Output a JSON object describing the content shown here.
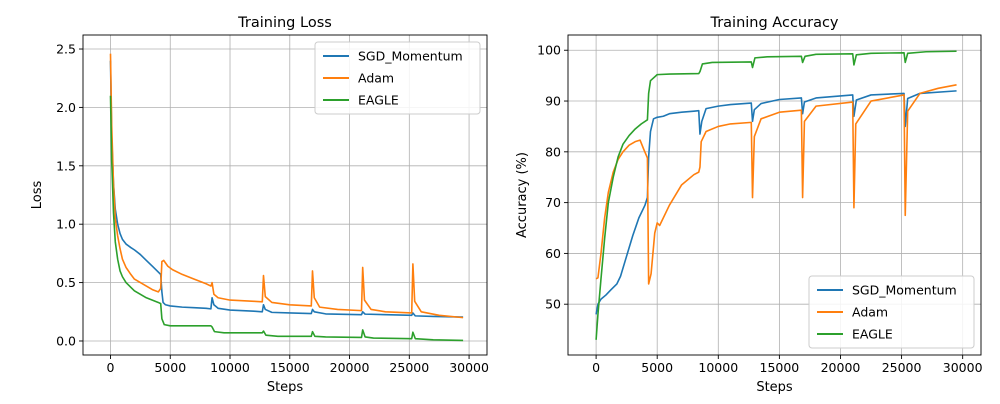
{
  "chart_data": [
    {
      "type": "line",
      "title": "Training Loss",
      "xlabel": "Steps",
      "ylabel": "Loss",
      "xlim": [
        -2300,
        31500
      ],
      "ylim": [
        -0.12,
        2.62
      ],
      "xticks": [
        0,
        5000,
        10000,
        15000,
        20000,
        25000,
        30000
      ],
      "yticks": [
        0.0,
        0.5,
        1.0,
        1.5,
        2.0,
        2.5
      ],
      "ytick_labels": [
        "0.0",
        "0.5",
        "1.0",
        "1.5",
        "2.0",
        "2.5"
      ],
      "grid": true,
      "legend_position": "top-right",
      "series": [
        {
          "name": "SGD_Momentum",
          "color": "#1f77b4",
          "points": [
            [
              0,
              2.4
            ],
            [
              100,
              1.75
            ],
            [
              250,
              1.35
            ],
            [
              400,
              1.13
            ],
            [
              600,
              1.0
            ],
            [
              800,
              0.92
            ],
            [
              1000,
              0.87
            ],
            [
              1300,
              0.83
            ],
            [
              1700,
              0.8
            ],
            [
              2000,
              0.78
            ],
            [
              2500,
              0.74
            ],
            [
              3000,
              0.69
            ],
            [
              3500,
              0.64
            ],
            [
              4000,
              0.59
            ],
            [
              4200,
              0.57
            ],
            [
              4300,
              0.42
            ],
            [
              4400,
              0.33
            ],
            [
              4600,
              0.31
            ],
            [
              5000,
              0.3
            ],
            [
              6000,
              0.29
            ],
            [
              7000,
              0.285
            ],
            [
              8000,
              0.28
            ],
            [
              8400,
              0.275
            ],
            [
              8500,
              0.37
            ],
            [
              8650,
              0.31
            ],
            [
              9000,
              0.28
            ],
            [
              10000,
              0.265
            ],
            [
              12000,
              0.255
            ],
            [
              12700,
              0.25
            ],
            [
              12800,
              0.31
            ],
            [
              12950,
              0.27
            ],
            [
              13500,
              0.245
            ],
            [
              15000,
              0.24
            ],
            [
              16800,
              0.235
            ],
            [
              16900,
              0.27
            ],
            [
              17050,
              0.25
            ],
            [
              18000,
              0.232
            ],
            [
              21000,
              0.225
            ],
            [
              21100,
              0.25
            ],
            [
              21300,
              0.23
            ],
            [
              25200,
              0.22
            ],
            [
              25300,
              0.24
            ],
            [
              25500,
              0.215
            ],
            [
              27000,
              0.21
            ],
            [
              29500,
              0.205
            ]
          ]
        },
        {
          "name": "Adam",
          "color": "#ff7f0e",
          "points": [
            [
              0,
              2.46
            ],
            [
              100,
              1.85
            ],
            [
              250,
              1.35
            ],
            [
              400,
              1.05
            ],
            [
              600,
              0.9
            ],
            [
              800,
              0.79
            ],
            [
              1000,
              0.7
            ],
            [
              1300,
              0.63
            ],
            [
              1700,
              0.57
            ],
            [
              2000,
              0.53
            ],
            [
              2500,
              0.5
            ],
            [
              3000,
              0.47
            ],
            [
              3500,
              0.44
            ],
            [
              4000,
              0.42
            ],
            [
              4200,
              0.45
            ],
            [
              4300,
              0.68
            ],
            [
              4450,
              0.69
            ],
            [
              4800,
              0.64
            ],
            [
              5200,
              0.61
            ],
            [
              6000,
              0.57
            ],
            [
              7000,
              0.53
            ],
            [
              8000,
              0.49
            ],
            [
              8400,
              0.47
            ],
            [
              8500,
              0.5
            ],
            [
              8650,
              0.4
            ],
            [
              9000,
              0.37
            ],
            [
              10000,
              0.35
            ],
            [
              12000,
              0.34
            ],
            [
              12700,
              0.335
            ],
            [
              12800,
              0.56
            ],
            [
              12950,
              0.38
            ],
            [
              13500,
              0.33
            ],
            [
              15000,
              0.31
            ],
            [
              16800,
              0.3
            ],
            [
              16900,
              0.6
            ],
            [
              17050,
              0.37
            ],
            [
              17500,
              0.29
            ],
            [
              19000,
              0.27
            ],
            [
              21000,
              0.26
            ],
            [
              21100,
              0.63
            ],
            [
              21250,
              0.35
            ],
            [
              21800,
              0.27
            ],
            [
              23000,
              0.25
            ],
            [
              25200,
              0.24
            ],
            [
              25300,
              0.66
            ],
            [
              25450,
              0.34
            ],
            [
              26000,
              0.25
            ],
            [
              27500,
              0.22
            ],
            [
              29500,
              0.2
            ]
          ]
        },
        {
          "name": "EAGLE",
          "color": "#2ca02c",
          "points": [
            [
              0,
              2.1
            ],
            [
              100,
              1.55
            ],
            [
              250,
              1.1
            ],
            [
              400,
              0.85
            ],
            [
              600,
              0.7
            ],
            [
              800,
              0.6
            ],
            [
              1000,
              0.55
            ],
            [
              1300,
              0.5
            ],
            [
              1700,
              0.46
            ],
            [
              2000,
              0.43
            ],
            [
              2500,
              0.4
            ],
            [
              3000,
              0.37
            ],
            [
              3500,
              0.35
            ],
            [
              4000,
              0.33
            ],
            [
              4200,
              0.32
            ],
            [
              4300,
              0.19
            ],
            [
              4500,
              0.14
            ],
            [
              5000,
              0.13
            ],
            [
              6000,
              0.13
            ],
            [
              8400,
              0.13
            ],
            [
              8500,
              0.12
            ],
            [
              8700,
              0.08
            ],
            [
              9500,
              0.07
            ],
            [
              12700,
              0.07
            ],
            [
              12800,
              0.085
            ],
            [
              13000,
              0.05
            ],
            [
              14000,
              0.04
            ],
            [
              16800,
              0.04
            ],
            [
              16900,
              0.08
            ],
            [
              17100,
              0.04
            ],
            [
              18000,
              0.035
            ],
            [
              21000,
              0.03
            ],
            [
              21100,
              0.095
            ],
            [
              21300,
              0.035
            ],
            [
              22000,
              0.025
            ],
            [
              25200,
              0.02
            ],
            [
              25300,
              0.075
            ],
            [
              25500,
              0.02
            ],
            [
              27000,
              0.01
            ],
            [
              29500,
              0.005
            ]
          ]
        }
      ]
    },
    {
      "type": "line",
      "title": "Training Accuracy",
      "xlabel": "Steps",
      "ylabel": "Accuracy (%)",
      "xlim": [
        -2300,
        31500
      ],
      "ylim": [
        40.0,
        103.0
      ],
      "xticks": [
        0,
        5000,
        10000,
        15000,
        20000,
        25000,
        30000
      ],
      "yticks": [
        50,
        60,
        70,
        80,
        90,
        100
      ],
      "ytick_labels": [
        "50",
        "60",
        "70",
        "80",
        "90",
        "100"
      ],
      "grid": true,
      "legend_position": "bottom-right",
      "series": [
        {
          "name": "SGD_Momentum",
          "color": "#1f77b4",
          "points": [
            [
              0,
              48.0
            ],
            [
              150,
              50.0
            ],
            [
              400,
              51.0
            ],
            [
              800,
              51.8
            ],
            [
              1200,
              52.8
            ],
            [
              1700,
              54.0
            ],
            [
              2000,
              55.5
            ],
            [
              2500,
              59.5
            ],
            [
              3000,
              63.5
            ],
            [
              3500,
              67.0
            ],
            [
              4000,
              69.5
            ],
            [
              4200,
              71.0
            ],
            [
              4300,
              79.0
            ],
            [
              4450,
              84.0
            ],
            [
              4700,
              86.5
            ],
            [
              5000,
              86.8
            ],
            [
              5500,
              87.0
            ],
            [
              6000,
              87.5
            ],
            [
              7000,
              87.8
            ],
            [
              8000,
              88.0
            ],
            [
              8400,
              88.1
            ],
            [
              8500,
              83.5
            ],
            [
              8650,
              86.0
            ],
            [
              9000,
              88.5
            ],
            [
              10000,
              89.0
            ],
            [
              11000,
              89.3
            ],
            [
              12700,
              89.6
            ],
            [
              12800,
              86.0
            ],
            [
              12950,
              88.3
            ],
            [
              13500,
              89.5
            ],
            [
              15000,
              90.3
            ],
            [
              16800,
              90.6
            ],
            [
              16900,
              87.5
            ],
            [
              17050,
              89.8
            ],
            [
              18000,
              90.6
            ],
            [
              21000,
              91.2
            ],
            [
              21100,
              87.0
            ],
            [
              21300,
              90.2
            ],
            [
              22500,
              91.2
            ],
            [
              25200,
              91.5
            ],
            [
              25300,
              85.0
            ],
            [
              25500,
              90.5
            ],
            [
              26500,
              91.5
            ],
            [
              29500,
              92.0
            ]
          ]
        },
        {
          "name": "Adam",
          "color": "#ff7f0e",
          "points": [
            [
              0,
              55.0
            ],
            [
              150,
              55.2
            ],
            [
              400,
              60.0
            ],
            [
              700,
              67.0
            ],
            [
              1000,
              72.0
            ],
            [
              1400,
              76.0
            ],
            [
              1800,
              78.5
            ],
            [
              2200,
              80.0
            ],
            [
              2700,
              81.3
            ],
            [
              3200,
              82.0
            ],
            [
              3600,
              82.3
            ],
            [
              3900,
              80.5
            ],
            [
              4200,
              78.8
            ],
            [
              4300,
              54.0
            ],
            [
              4500,
              56.0
            ],
            [
              4800,
              64.0
            ],
            [
              5000,
              66.0
            ],
            [
              5200,
              65.5
            ],
            [
              6000,
              69.5
            ],
            [
              7000,
              73.5
            ],
            [
              8000,
              75.5
            ],
            [
              8400,
              76.0
            ],
            [
              8500,
              77.0
            ],
            [
              8600,
              82.0
            ],
            [
              9000,
              84.0
            ],
            [
              10000,
              85.0
            ],
            [
              11000,
              85.5
            ],
            [
              12700,
              85.8
            ],
            [
              12800,
              71.0
            ],
            [
              12950,
              83.0
            ],
            [
              13500,
              86.5
            ],
            [
              15000,
              87.8
            ],
            [
              16800,
              88.2
            ],
            [
              16900,
              71.0
            ],
            [
              17050,
              86.0
            ],
            [
              18000,
              89.0
            ],
            [
              21000,
              89.8
            ],
            [
              21100,
              69.0
            ],
            [
              21250,
              85.5
            ],
            [
              22500,
              90.0
            ],
            [
              25200,
              91.2
            ],
            [
              25300,
              67.5
            ],
            [
              25500,
              88.0
            ],
            [
              26500,
              91.5
            ],
            [
              28000,
              92.5
            ],
            [
              29500,
              93.2
            ]
          ]
        },
        {
          "name": "EAGLE",
          "color": "#2ca02c",
          "points": [
            [
              0,
              43.0
            ],
            [
              150,
              48.0
            ],
            [
              400,
              55.0
            ],
            [
              700,
              63.0
            ],
            [
              1000,
              70.0
            ],
            [
              1400,
              75.0
            ],
            [
              1800,
              79.0
            ],
            [
              2200,
              81.5
            ],
            [
              2700,
              83.2
            ],
            [
              3200,
              84.5
            ],
            [
              3700,
              85.5
            ],
            [
              4200,
              86.3
            ],
            [
              4300,
              91.5
            ],
            [
              4450,
              94.0
            ],
            [
              5000,
              95.2
            ],
            [
              6000,
              95.3
            ],
            [
              8400,
              95.4
            ],
            [
              8500,
              95.8
            ],
            [
              8700,
              97.3
            ],
            [
              9500,
              97.6
            ],
            [
              12700,
              97.7
            ],
            [
              12800,
              96.6
            ],
            [
              13000,
              98.5
            ],
            [
              14000,
              98.7
            ],
            [
              16800,
              98.8
            ],
            [
              16900,
              97.6
            ],
            [
              17100,
              98.8
            ],
            [
              18000,
              99.2
            ],
            [
              21000,
              99.3
            ],
            [
              21100,
              97.1
            ],
            [
              21300,
              99.1
            ],
            [
              22500,
              99.4
            ],
            [
              25200,
              99.5
            ],
            [
              25300,
              97.6
            ],
            [
              25500,
              99.4
            ],
            [
              27000,
              99.7
            ],
            [
              29500,
              99.8
            ]
          ]
        }
      ]
    }
  ]
}
